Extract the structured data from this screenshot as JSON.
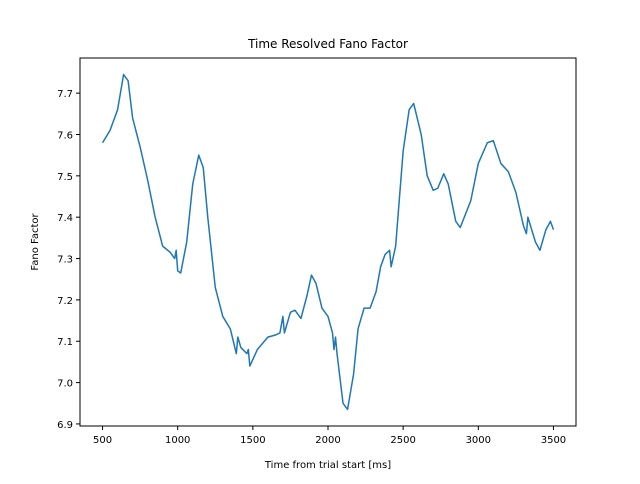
{
  "chart_data": {
    "type": "line",
    "title": "Time Resolved Fano Factor",
    "x_label": "Time from trial start [ms]",
    "y_label": "Fano Factor",
    "x": [
      500,
      550,
      600,
      640,
      670,
      700,
      750,
      800,
      850,
      900,
      950,
      980,
      990,
      1000,
      1020,
      1060,
      1100,
      1140,
      1170,
      1200,
      1250,
      1300,
      1350,
      1390,
      1400,
      1420,
      1460,
      1470,
      1480,
      1530,
      1600,
      1650,
      1680,
      1700,
      1710,
      1750,
      1780,
      1820,
      1860,
      1890,
      1920,
      1960,
      2000,
      2030,
      2040,
      2050,
      2060,
      2100,
      2130,
      2170,
      2200,
      2240,
      2280,
      2320,
      2350,
      2380,
      2410,
      2420,
      2450,
      2500,
      2540,
      2570,
      2620,
      2660,
      2700,
      2730,
      2770,
      2800,
      2850,
      2880,
      2950,
      3000,
      3060,
      3100,
      3150,
      3200,
      3250,
      3300,
      3320,
      3330,
      3380,
      3410,
      3450,
      3480,
      3500
    ],
    "series": [
      {
        "name": "Fano Factor",
        "color": "#1f77b4",
        "values": [
          7.58,
          7.61,
          7.66,
          7.745,
          7.73,
          7.64,
          7.57,
          7.49,
          7.4,
          7.33,
          7.315,
          7.3,
          7.32,
          7.27,
          7.265,
          7.34,
          7.48,
          7.55,
          7.52,
          7.4,
          7.23,
          7.16,
          7.13,
          7.07,
          7.11,
          7.085,
          7.07,
          7.08,
          7.04,
          7.08,
          7.11,
          7.115,
          7.12,
          7.16,
          7.12,
          7.17,
          7.175,
          7.155,
          7.21,
          7.26,
          7.24,
          7.18,
          7.16,
          7.12,
          7.08,
          7.11,
          7.07,
          6.95,
          6.935,
          7.02,
          7.13,
          7.18,
          7.18,
          7.22,
          7.28,
          7.31,
          7.32,
          7.28,
          7.33,
          7.56,
          7.66,
          7.675,
          7.6,
          7.5,
          7.465,
          7.47,
          7.505,
          7.48,
          7.39,
          7.375,
          7.44,
          7.53,
          7.58,
          7.585,
          7.53,
          7.51,
          7.46,
          7.38,
          7.36,
          7.4,
          7.34,
          7.32,
          7.37,
          7.39,
          7.37
        ]
      }
    ],
    "xlim": [
      350,
      3650
    ],
    "ylim": [
      6.895,
      7.785
    ],
    "xticks": [
      500,
      1000,
      1500,
      2000,
      2500,
      3000,
      3500
    ],
    "yticks": [
      6.9,
      {
        "value": 7,
        "label": "7.0"
      },
      7.1,
      7.2,
      7.3,
      7.4,
      7.5,
      7.6,
      7.7
    ]
  }
}
